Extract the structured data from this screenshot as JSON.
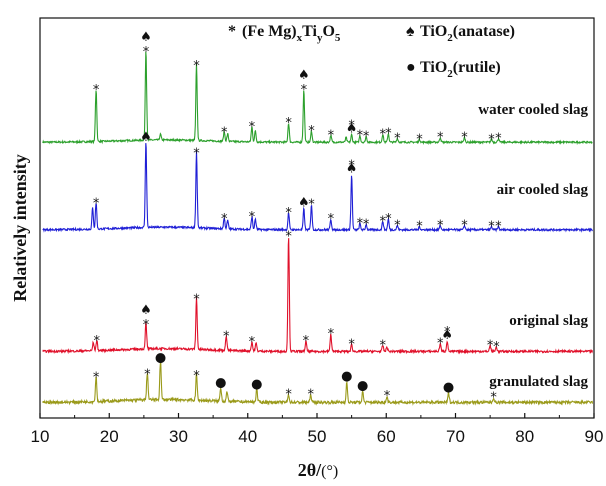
{
  "chart_data": {
    "type": "line",
    "xlabel_main": "2θ/",
    "xlabel_unit": "(°)",
    "ylabel": "Relatively intensity",
    "xlim": [
      10,
      90
    ],
    "xticks": [
      10,
      20,
      30,
      40,
      50,
      60,
      70,
      80,
      90
    ],
    "grid": false,
    "legend": [
      {
        "symbol": "*",
        "parts": [
          "(Fe Mg)",
          "x",
          "Ti",
          "y",
          "O",
          "5"
        ],
        "subs": [
          1,
          3,
          5
        ]
      },
      {
        "symbol": "♠",
        "parts": [
          "TiO",
          "2",
          "(anatase)"
        ],
        "subs": [
          1
        ]
      },
      {
        "symbol": "●",
        "parts": [
          "TiO",
          "2",
          "(rutile)"
        ],
        "subs": [
          1
        ]
      }
    ],
    "series": [
      {
        "name": "water cooled slag",
        "color": "#2ca02c",
        "baseline": 0.04,
        "peaks": [
          [
            18.1,
            0.55
          ],
          [
            25.3,
            0.95
          ],
          [
            27.4,
            0.06
          ],
          [
            32.6,
            0.8
          ],
          [
            36.6,
            0.1
          ],
          [
            37.1,
            0.08
          ],
          [
            40.6,
            0.16
          ],
          [
            41.1,
            0.12
          ],
          [
            45.9,
            0.2
          ],
          [
            48.1,
            0.55
          ],
          [
            49.2,
            0.12
          ],
          [
            52.0,
            0.07
          ],
          [
            54.2,
            0.05
          ],
          [
            55.0,
            0.08
          ],
          [
            56.2,
            0.07
          ],
          [
            57.1,
            0.06
          ],
          [
            59.5,
            0.08
          ],
          [
            60.3,
            0.09
          ],
          [
            61.6,
            0.04
          ],
          [
            64.8,
            0.03
          ],
          [
            67.8,
            0.05
          ],
          [
            71.3,
            0.05
          ],
          [
            75.2,
            0.03
          ],
          [
            76.2,
            0.04
          ]
        ],
        "markers": [
          [
            18.1,
            "*"
          ],
          [
            25.3,
            "*"
          ],
          [
            25.3,
            "♠"
          ],
          [
            32.6,
            "*"
          ],
          [
            36.6,
            "*"
          ],
          [
            40.6,
            "*"
          ],
          [
            45.9,
            "*"
          ],
          [
            48.1,
            "*"
          ],
          [
            48.1,
            "♠"
          ],
          [
            49.2,
            "*"
          ],
          [
            52.0,
            "*"
          ],
          [
            55.0,
            "♠"
          ],
          [
            55.0,
            "*"
          ],
          [
            56.2,
            "*"
          ],
          [
            57.1,
            "*"
          ],
          [
            59.5,
            "*"
          ],
          [
            60.3,
            "*"
          ],
          [
            61.6,
            "*"
          ],
          [
            64.8,
            "*"
          ],
          [
            67.8,
            "*"
          ],
          [
            71.3,
            "*"
          ],
          [
            75.2,
            "*"
          ],
          [
            76.2,
            "*"
          ]
        ]
      },
      {
        "name": "air cooled slag",
        "color": "#1f1fd6",
        "baseline": 0.04,
        "peaks": [
          [
            17.6,
            0.2
          ],
          [
            18.1,
            0.25
          ],
          [
            25.3,
            0.82
          ],
          [
            32.6,
            0.72
          ],
          [
            36.6,
            0.1
          ],
          [
            37.1,
            0.08
          ],
          [
            40.6,
            0.12
          ],
          [
            41.1,
            0.1
          ],
          [
            45.9,
            0.16
          ],
          [
            48.1,
            0.2
          ],
          [
            49.2,
            0.24
          ],
          [
            52.0,
            0.1
          ],
          [
            55.0,
            0.52
          ],
          [
            56.2,
            0.06
          ],
          [
            57.1,
            0.05
          ],
          [
            59.5,
            0.08
          ],
          [
            60.3,
            0.1
          ],
          [
            61.6,
            0.04
          ],
          [
            64.8,
            0.03
          ],
          [
            67.8,
            0.04
          ],
          [
            71.3,
            0.04
          ],
          [
            75.2,
            0.03
          ],
          [
            76.2,
            0.03
          ]
        ],
        "markers": [
          [
            18.1,
            "*"
          ],
          [
            25.3,
            "♠"
          ],
          [
            32.6,
            "*"
          ],
          [
            36.6,
            "*"
          ],
          [
            40.6,
            "*"
          ],
          [
            45.9,
            "*"
          ],
          [
            48.1,
            "♠"
          ],
          [
            49.2,
            "*"
          ],
          [
            52.0,
            "*"
          ],
          [
            55.0,
            "♠"
          ],
          [
            55.0,
            "*"
          ],
          [
            56.2,
            "*"
          ],
          [
            57.1,
            "*"
          ],
          [
            59.5,
            "*"
          ],
          [
            60.3,
            "*"
          ],
          [
            61.6,
            "*"
          ],
          [
            64.8,
            "*"
          ],
          [
            67.8,
            "*"
          ],
          [
            71.3,
            "*"
          ],
          [
            75.2,
            "*"
          ],
          [
            76.2,
            "*"
          ]
        ]
      },
      {
        "name": "original slag",
        "color": "#e0102a",
        "baseline": 0.04,
        "peaks": [
          [
            17.7,
            0.07
          ],
          [
            18.2,
            0.09
          ],
          [
            25.3,
            0.23
          ],
          [
            32.6,
            0.45
          ],
          [
            36.9,
            0.13
          ],
          [
            40.6,
            0.08
          ],
          [
            41.2,
            0.07
          ],
          [
            45.9,
            1.0
          ],
          [
            48.4,
            0.09
          ],
          [
            52.0,
            0.15
          ],
          [
            55.0,
            0.06
          ],
          [
            59.5,
            0.05
          ],
          [
            60.1,
            0.04
          ],
          [
            67.8,
            0.07
          ],
          [
            68.8,
            0.09
          ],
          [
            75.0,
            0.05
          ],
          [
            75.9,
            0.04
          ]
        ],
        "markers": [
          [
            18.2,
            "*"
          ],
          [
            25.3,
            "*"
          ],
          [
            25.3,
            "♠"
          ],
          [
            32.6,
            "*"
          ],
          [
            36.9,
            "*"
          ],
          [
            40.6,
            "*"
          ],
          [
            45.9,
            "*"
          ],
          [
            48.4,
            "*"
          ],
          [
            52.0,
            "*"
          ],
          [
            55.0,
            "*"
          ],
          [
            59.5,
            "*"
          ],
          [
            67.8,
            "*"
          ],
          [
            68.8,
            "♠"
          ],
          [
            68.8,
            "*"
          ],
          [
            75.0,
            "*"
          ],
          [
            75.9,
            "*"
          ]
        ]
      },
      {
        "name": "granulated slag",
        "color": "#9a9a1a",
        "baseline": 0.03,
        "peaks": [
          [
            18.1,
            0.16
          ],
          [
            25.5,
            0.18
          ],
          [
            27.4,
            0.25
          ],
          [
            32.6,
            0.17
          ],
          [
            36.1,
            0.09
          ],
          [
            37.0,
            0.06
          ],
          [
            41.3,
            0.08
          ],
          [
            45.9,
            0.05
          ],
          [
            49.1,
            0.05
          ],
          [
            54.3,
            0.13
          ],
          [
            56.6,
            0.07
          ],
          [
            60.1,
            0.04
          ],
          [
            69.0,
            0.06
          ],
          [
            75.5,
            0.03
          ]
        ],
        "markers": [
          [
            18.1,
            "*"
          ],
          [
            25.5,
            "*"
          ],
          [
            27.4,
            "●"
          ],
          [
            32.6,
            "*"
          ],
          [
            36.1,
            "●"
          ],
          [
            41.3,
            "●"
          ],
          [
            45.9,
            "*"
          ],
          [
            49.1,
            "*"
          ],
          [
            54.3,
            "●"
          ],
          [
            56.6,
            "●"
          ],
          [
            60.1,
            "*"
          ],
          [
            69.0,
            "●"
          ],
          [
            75.5,
            "*"
          ]
        ]
      }
    ]
  }
}
